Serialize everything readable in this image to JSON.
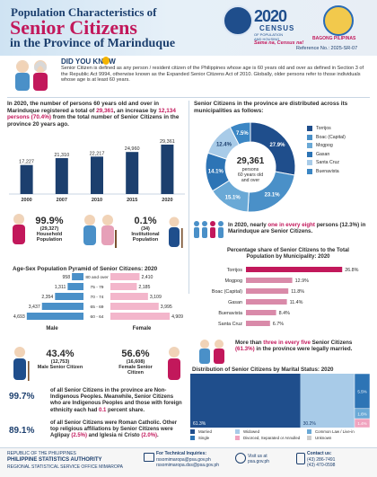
{
  "header": {
    "title_line1": "Population Characteristics of",
    "title_line2": "Senior Citizens",
    "title_line3": "in the Province of Marinduque",
    "census_year": "2020",
    "census_word": "CENSUS",
    "census_sub": "OF POPULATION AND HOUSING",
    "census_slogan": "Sama na, Census na!",
    "bagong_pilipinas": "BAGONG PILIPINAS",
    "reference_no": "Reference No.: 2025-SR-07"
  },
  "did_you_know": {
    "title": "DID YOU KNOW",
    "text": "Senior Citizen is defined as any person / resident citizen of the Philippines whose age is 60 years old and over as defined in Section 3 of the Republic Act 9994, otherwise known as the Expanded Senior Citizens Act of 2010. Globally, older persons refer to those individuals whose age is at least 60 years."
  },
  "growth": {
    "intro_a": "In 2020, the number of persons 60 years old and over in Marinduque registered a total of ",
    "intro_total": "29,361",
    "intro_b": ", an increase by ",
    "intro_inc": "12,134 persons (70.4%)",
    "intro_c": " from the total number of Senior Citizens in the province 20 years ago."
  },
  "pie": {
    "intro": "Senior Citizens in the province are distributed across its municipalities as follows:",
    "center_value": "29,361",
    "center_label": "persons 60 years old and over"
  },
  "household": {
    "pct": "99.9%",
    "count": "(29,327)",
    "label": "Household Population"
  },
  "institutional": {
    "pct": "0.1%",
    "count": "(34)",
    "label": "Institutional Population"
  },
  "one_in_eight": {
    "a": "In 2020, nearly ",
    "b": "one in every eight",
    "c": " persons (12.3%) in Marinduque are Senior Citizens."
  },
  "pyramid": {
    "title": "Age-Sex Population Pyramid of Senior Citizens: 2020",
    "male_label": "Male",
    "female_label": "Female"
  },
  "male_box": {
    "pct": "43.4%",
    "count": "(12,753)",
    "label": "Male Senior Citizen"
  },
  "female_box": {
    "pct": "56.6%",
    "count": "(16,608)",
    "label": "Female Senior Citizen"
  },
  "share": {
    "title": "Percentage share of Senior Citizens to the Total Population by Municipality: 2020"
  },
  "married": {
    "a": "More than ",
    "b": "three in every five",
    "c": " Senior Citizens ",
    "d": "(61.3%)",
    "e": " in the province were legally married."
  },
  "marital": {
    "title": "Distribution of Senior Citizens by Marital Status: 2020"
  },
  "stats": {
    "indig_pct": "99.7%",
    "indig_text_a": "of all Senior Citizens in the province are Non-Indigenous Peoples. Meanwhile, Senior Citizens who are Indigenous Peoples and those with foreign ethnicity each had ",
    "indig_hl": "0.1",
    "indig_text_b": " percent share.",
    "rc_pct": "89.1%",
    "rc_text_a": "of all Senior Citizens were Roman Catholic. Other top religious affiliations by Senior Citizens were Aglipay ",
    "rc_hl1": "(2.5%)",
    "rc_text_b": " and Iglesia ni Cristo ",
    "rc_hl2": "(2.0%)",
    "rc_text_c": "."
  },
  "footer": {
    "republic": "REPUBLIC OF THE PHILIPPINES",
    "psa": "PHILIPPINE STATISTICS AUTHORITY",
    "office": "REGIONAL STATISTICAL SERVICE OFFICE MIMAROPA",
    "tech_label": "For Technical Inquiries:",
    "email1": "rssomimaropa@psa.gov.ph",
    "email2": "rssomimaropa.dss@psa.gov.ph",
    "visit_label": "Visit us at",
    "site": "psa.gov.ph",
    "contact_label": "Contact us:",
    "phone1": "(43) 286-7491",
    "phone2": "(43) 470-0598"
  },
  "colors": {
    "navy": "#1c3f6e",
    "magenta": "#c2185b",
    "pie": [
      "#1f4e8c",
      "#4a90c8",
      "#6aa9d6",
      "#2d74b5",
      "#a8cbe8",
      "#3b86c4"
    ]
  },
  "chart_data": [
    {
      "type": "bar",
      "categories": [
        "2000",
        "2007",
        "2010",
        "2015",
        "2020"
      ],
      "values": [
        17227,
        21310,
        22217,
        24960,
        29361
      ],
      "value_labels": [
        "17,227",
        "21,310",
        "22,217",
        "24,960",
        "29,361"
      ]
    },
    {
      "type": "pie",
      "categories": [
        "Torrijos",
        "Boac (Capital)",
        "Mogpog",
        "Gasan",
        "Santa Cruz",
        "Buenavista"
      ],
      "values": [
        27.9,
        23.1,
        15.1,
        14.1,
        12.4,
        7.5
      ],
      "value_labels": [
        "27.9%",
        "23.1%",
        "15.1%",
        "14.1%",
        "12.4%",
        "7.5%"
      ]
    },
    {
      "type": "bar",
      "categories": [
        "80 and over",
        "75 - 79",
        "70 - 74",
        "65 - 69",
        "60 - 64"
      ],
      "series": [
        {
          "name": "Male",
          "values": [
            958,
            1311,
            2354,
            3437,
            4693
          ],
          "value_labels": [
            "958",
            "1,311",
            "2,354",
            "3,437",
            "4,693"
          ]
        },
        {
          "name": "Female",
          "values": [
            2410,
            2185,
            3109,
            3995,
            4909
          ],
          "value_labels": [
            "2,410",
            "2,185",
            "3,109",
            "3,995",
            "4,909"
          ]
        }
      ]
    },
    {
      "type": "bar",
      "categories": [
        "Torrijos",
        "Mogpog",
        "Boac (Capital)",
        "Gasan",
        "Buenavista",
        "Santa Cruz"
      ],
      "values": [
        26.8,
        12.9,
        11.8,
        11.4,
        8.4,
        6.7
      ],
      "value_labels": [
        "26.8%",
        "12.9%",
        "11.8%",
        "11.4%",
        "8.4%",
        "6.7%"
      ]
    },
    {
      "type": "bar",
      "categories": [
        "Married",
        "Widowed",
        "Common Law / Live-in",
        "Single",
        "Divorced, Separated or Annulled",
        "Unknown"
      ],
      "values": [
        61.3,
        30.2,
        1.6,
        5.5,
        1.4,
        0.0
      ],
      "value_labels": [
        "61.3%",
        "30.2%",
        "1.6%",
        "5.5%",
        "1.4%",
        ""
      ]
    }
  ]
}
